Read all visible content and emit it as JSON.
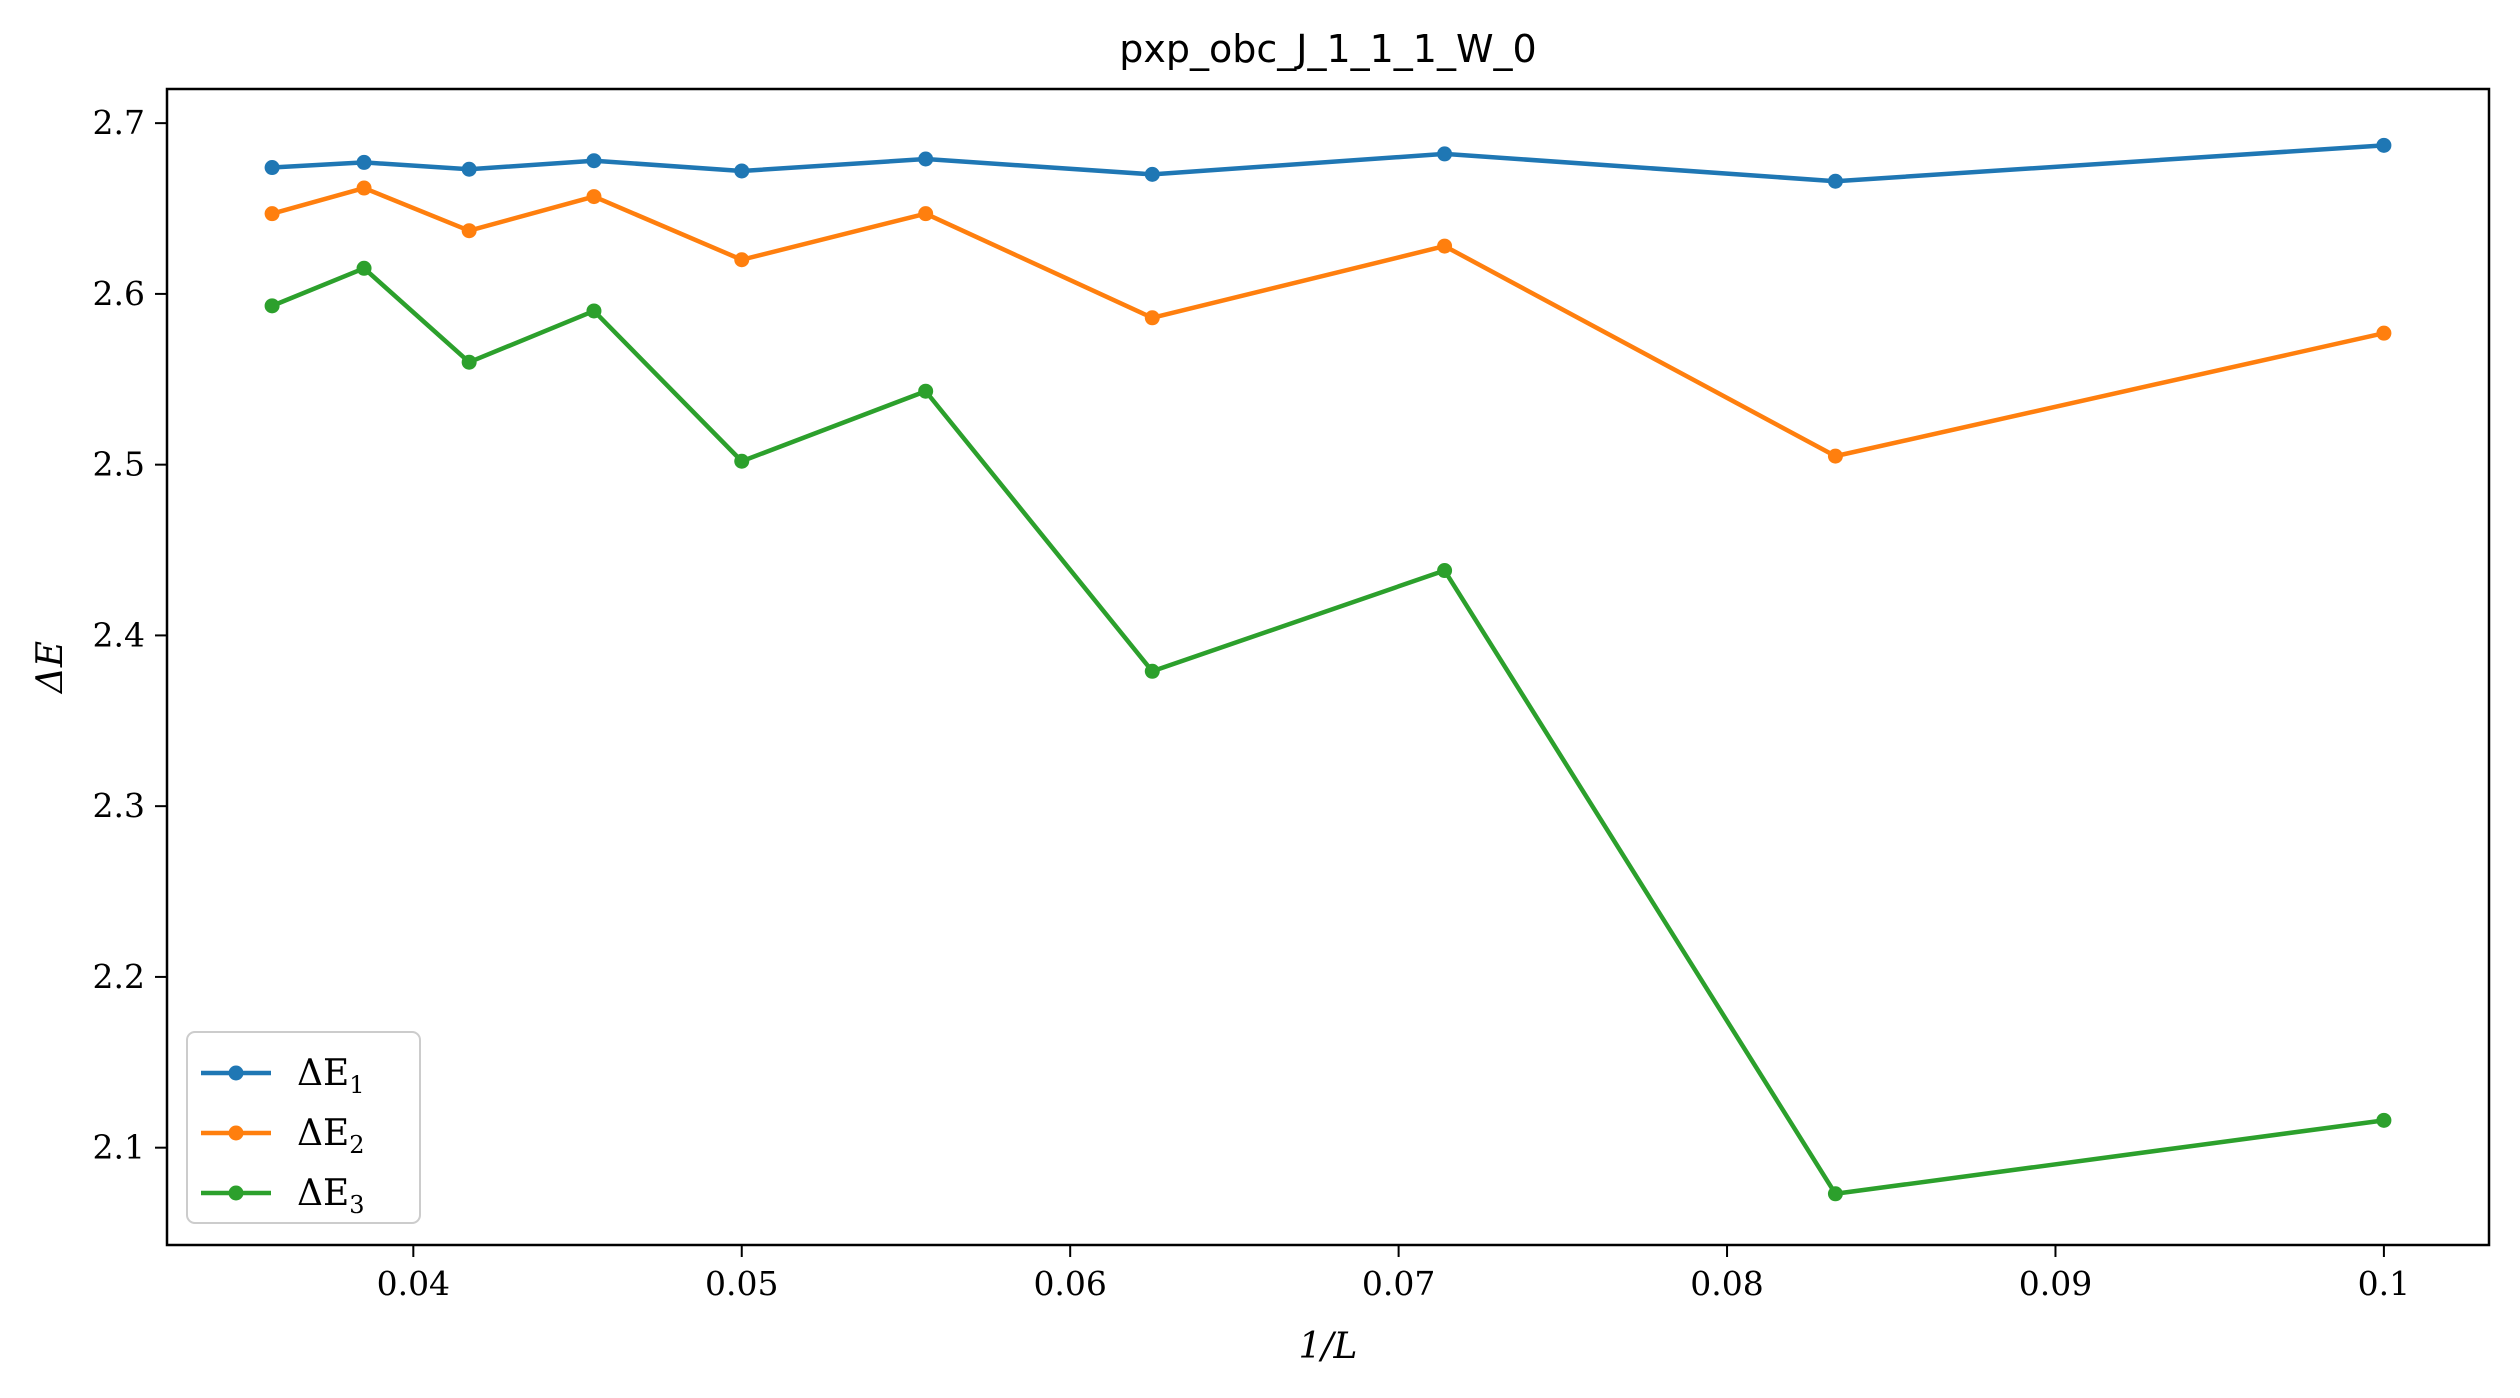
{
  "chart_data": {
    "type": "line",
    "title": "pxp_obc_J_1_1_1_W_0",
    "xlabel": "1/L",
    "ylabel": "ΔE",
    "xlim": [
      0.0325,
      0.1032
    ],
    "ylim": [
      2.043,
      2.72
    ],
    "xticks": [
      "0.04",
      "0.05",
      "0.06",
      "0.07",
      "0.08",
      "0.09",
      "0.1"
    ],
    "xtick_values": [
      0.04,
      0.05,
      0.06,
      0.07,
      0.08,
      0.09,
      0.1
    ],
    "yticks": [
      "2.1",
      "2.2",
      "2.3",
      "2.4",
      "2.5",
      "2.6",
      "2.7"
    ],
    "ytick_values": [
      2.1,
      2.2,
      2.3,
      2.4,
      2.5,
      2.6,
      2.7
    ],
    "grid": false,
    "legend_position": "lower-left",
    "x": [
      0.0357,
      0.0385,
      0.0417,
      0.0455,
      0.05,
      0.0556,
      0.0625,
      0.0714,
      0.0833,
      0.1
    ],
    "series": [
      {
        "name": "ΔE",
        "subscript": "1",
        "color": "#1f77b4",
        "values": [
          2.674,
          2.677,
          2.673,
          2.678,
          2.672,
          2.679,
          2.67,
          2.682,
          2.666,
          2.687
        ]
      },
      {
        "name": "ΔE",
        "subscript": "2",
        "color": "#ff7f0e",
        "values": [
          2.647,
          2.662,
          2.637,
          2.657,
          2.62,
          2.647,
          2.586,
          2.628,
          2.505,
          2.577
        ]
      },
      {
        "name": "ΔE",
        "subscript": "3",
        "color": "#2ca02c",
        "values": [
          2.593,
          2.615,
          2.56,
          2.59,
          2.502,
          2.543,
          2.379,
          2.438,
          2.073,
          2.116
        ]
      }
    ]
  }
}
